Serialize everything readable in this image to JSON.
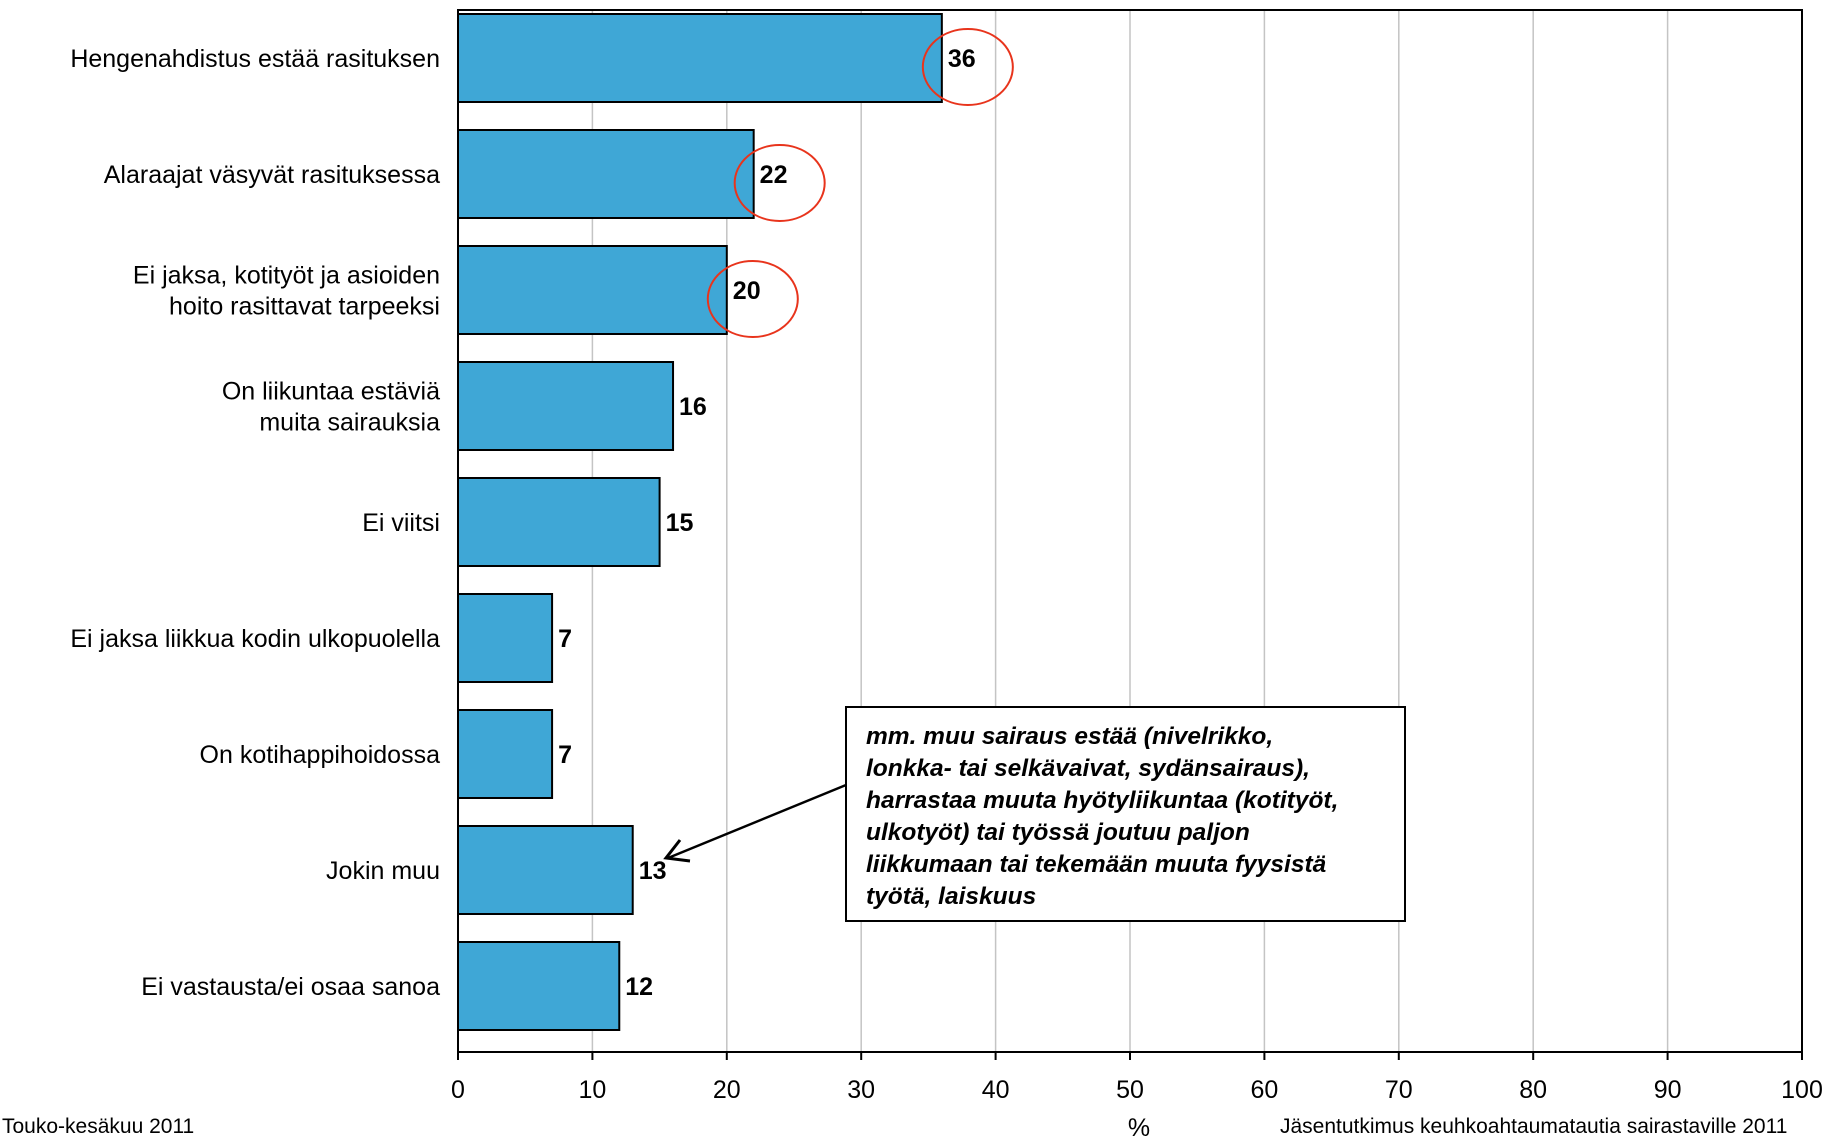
{
  "chart_data": {
    "type": "bar",
    "orientation": "horizontal",
    "categories": [
      [
        "Hengenahdistus estää rasituksen"
      ],
      [
        "Alaraajat väsyvät rasituksessa"
      ],
      [
        "Ei jaksa, kotityöt ja asioiden",
        "hoito rasittavat tarpeeksi"
      ],
      [
        "On liikuntaa estäviä",
        "muita sairauksia"
      ],
      [
        "Ei viitsi"
      ],
      [
        "Ei jaksa liikkua kodin ulkopuolella"
      ],
      [
        "On kotihappihoidossa"
      ],
      [
        "Jokin muu"
      ],
      [
        "Ei vastausta/ei osaa sanoa"
      ]
    ],
    "values": [
      36,
      22,
      20,
      16,
      15,
      7,
      7,
      13,
      12
    ],
    "highlighted": [
      0,
      1,
      2
    ],
    "xlim": [
      0,
      100
    ],
    "xticks": [
      0,
      10,
      20,
      30,
      40,
      50,
      60,
      70,
      80,
      90,
      100
    ],
    "xlabel": "%",
    "grid": "vertical",
    "bar_color": "#3fa7d6",
    "highlight_color": "#e8341c",
    "annotation": {
      "lines": [
        "mm. muu sairaus estää (nivelrikko,",
        "lonkka- tai selkävaivat, sydänsairaus),",
        "harrastaa muuta hyötyliikuntaa (kotityöt,",
        "ulkotyöt) tai työssä joutuu paljon",
        "liikkumaan tai tekemään muuta fyysistä",
        "työtä, laiskuus"
      ],
      "target_category_index": 7
    }
  },
  "footer": {
    "left": "Touko-kesäkuu 2011",
    "right": "Jäsentutkimus keuhkoahtaumatautia sairastaville 2011"
  }
}
